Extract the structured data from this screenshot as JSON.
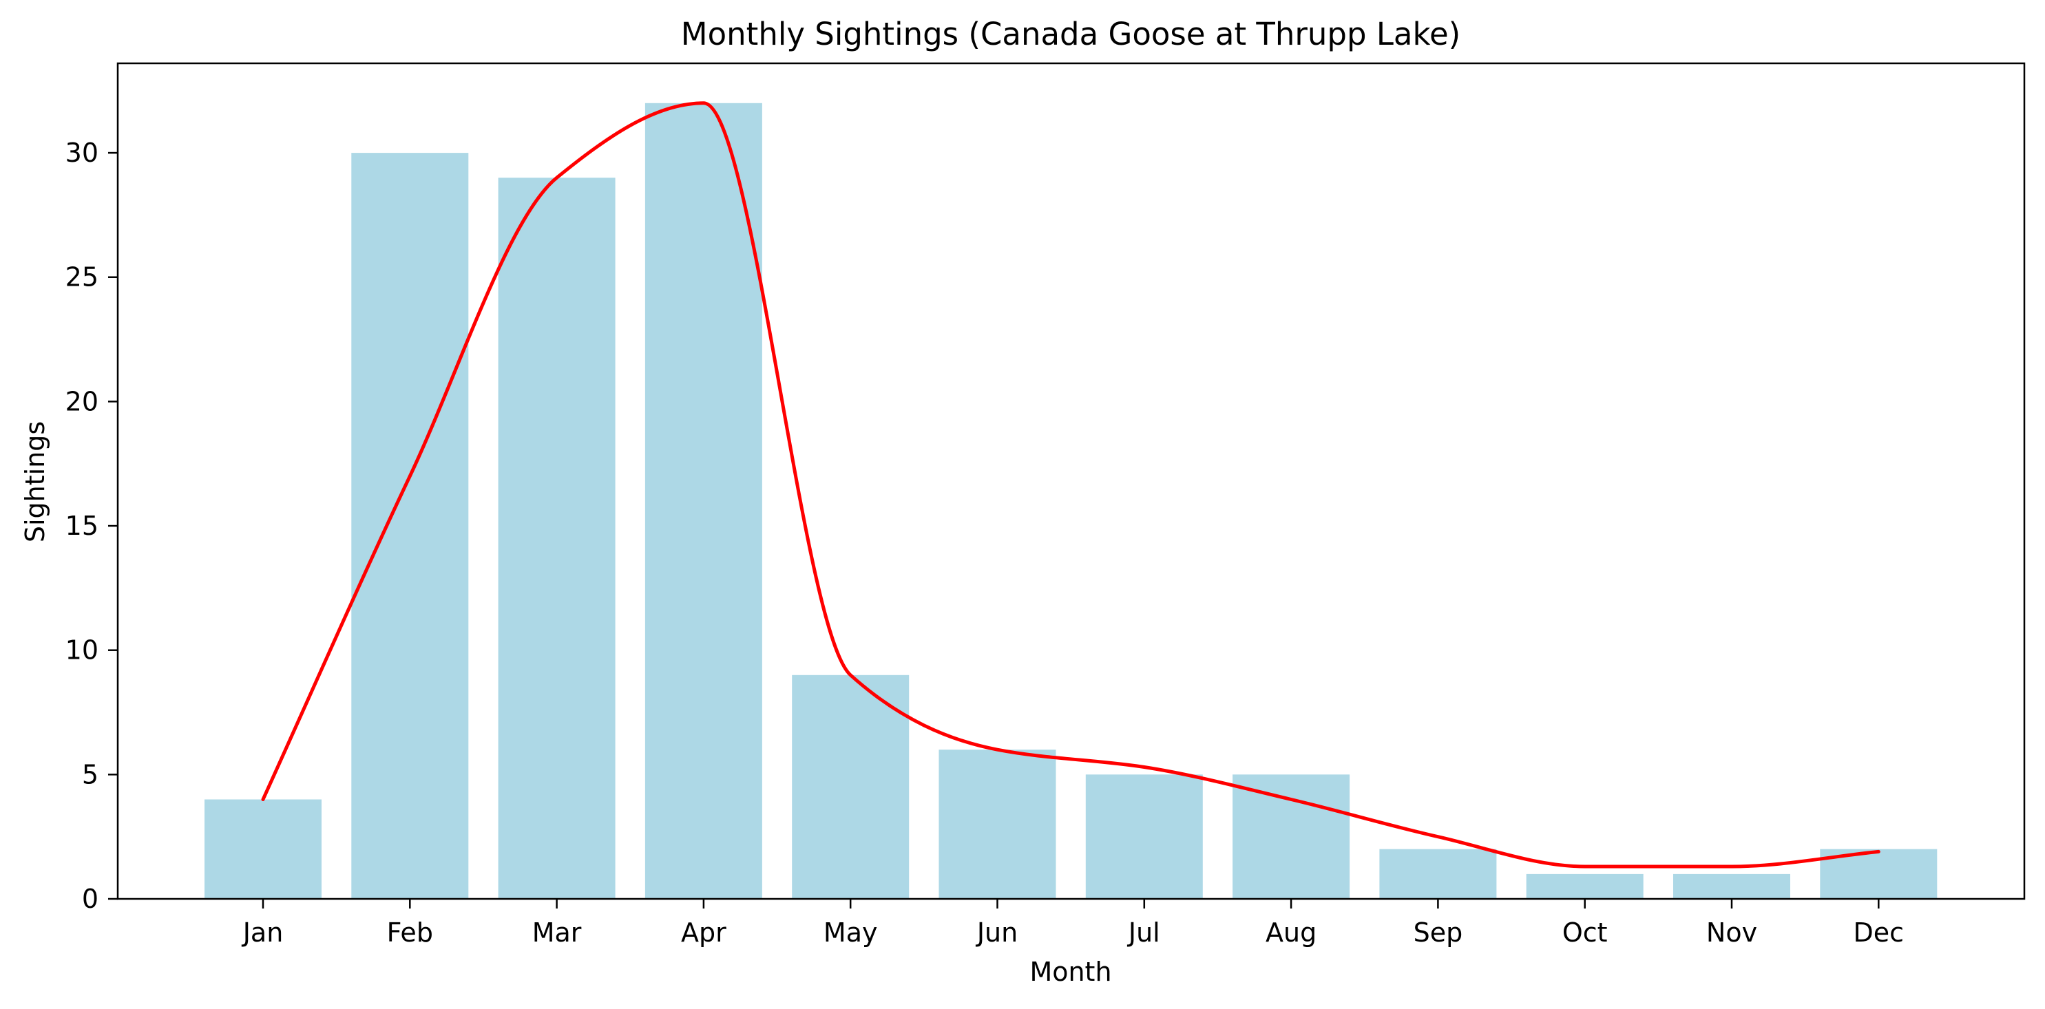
{
  "chart_data": {
    "type": "bar",
    "title": "Monthly Sightings (Canada Goose at Thrupp Lake)",
    "xlabel": "Month",
    "ylabel": "Sightings",
    "categories": [
      "Jan",
      "Feb",
      "Mar",
      "Apr",
      "May",
      "Jun",
      "Jul",
      "Aug",
      "Sep",
      "Oct",
      "Nov",
      "Dec"
    ],
    "values": [
      4,
      30,
      29,
      32,
      9,
      6,
      5,
      5,
      2,
      1,
      1,
      2
    ],
    "ylim": [
      0,
      33.6
    ],
    "yticks": [
      "0",
      "5",
      "10",
      "15",
      "20",
      "25",
      "30"
    ],
    "grid": false,
    "legend": "none",
    "bar_color": "#add8e6",
    "trend": {
      "type": "line",
      "smooth": true,
      "color": "#ff0000",
      "x": [
        "Jan",
        "Feb",
        "Mar",
        "Apr",
        "May",
        "Jun",
        "Jul",
        "Aug",
        "Sep",
        "Oct",
        "Nov",
        "Dec"
      ],
      "values": [
        4,
        17,
        29,
        32,
        9,
        6,
        5.3,
        4,
        2.5,
        1.3,
        1.3,
        1.9
      ]
    }
  }
}
